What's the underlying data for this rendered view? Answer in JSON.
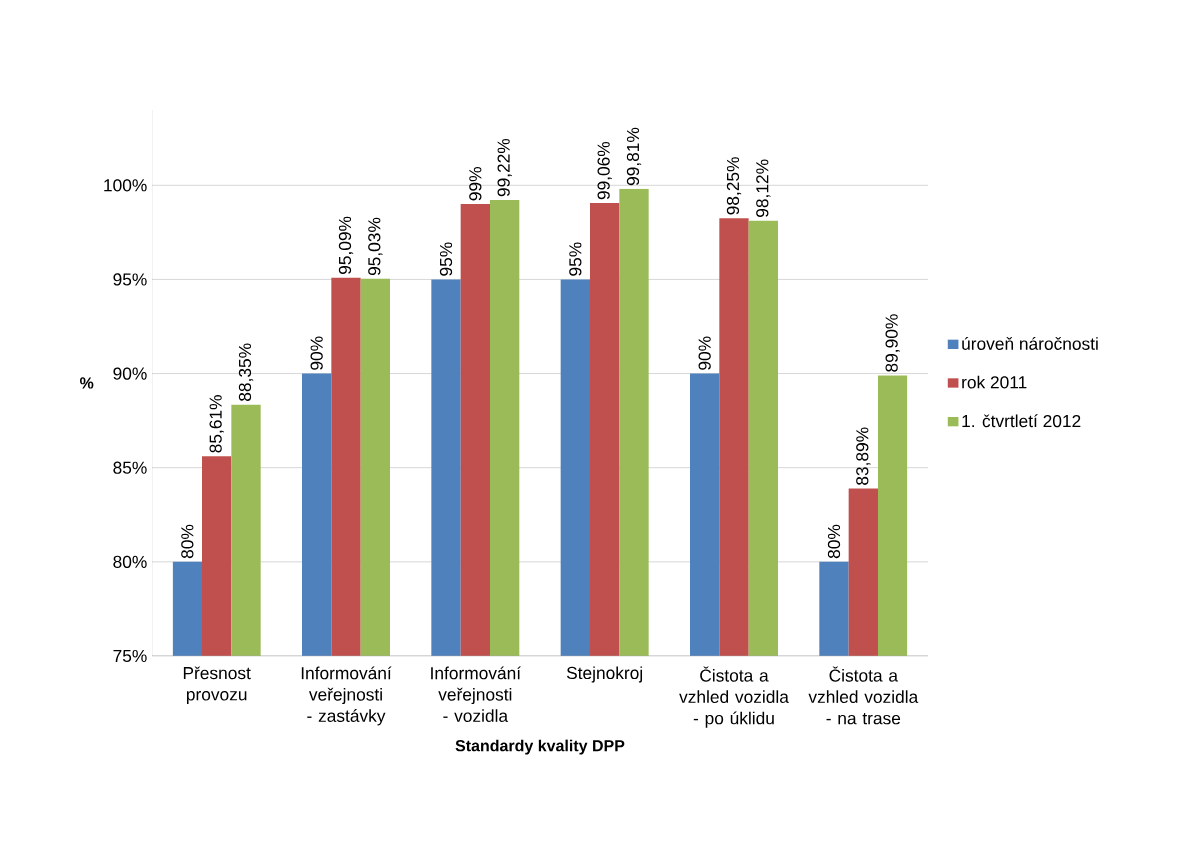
{
  "chart_data": {
    "type": "bar",
    "xlabel": "Standardy kvality DPP",
    "ylabel": "%",
    "categories": [
      "Přesnost provozu",
      "Informování veřejnosti - zastávky",
      "Informování veřejnosti - vozidla",
      "Stejnokroj",
      "Čistota a vzhled vozidla - po úklidu",
      "Čistota a vzhled vozidla - na trase"
    ],
    "series": [
      {
        "name": "úroveň náročnosti",
        "color": "#4f81bd",
        "values": [
          80,
          90,
          95,
          95,
          90,
          80
        ],
        "value_labels": [
          "80%",
          "90%",
          "95%",
          "95%",
          "90%",
          "80%"
        ]
      },
      {
        "name": "rok 2011",
        "color": "#c0504d",
        "values": [
          85.61,
          95.09,
          99,
          99.06,
          98.25,
          83.89
        ],
        "value_labels": [
          "85,61%",
          "95,09%",
          "99%",
          "99,06%",
          "98,25%",
          "83,89%"
        ]
      },
      {
        "name": "1. čtvrtletí 2012",
        "color": "#9bbb59",
        "values": [
          88.35,
          95.03,
          99.22,
          99.81,
          98.12,
          89.9
        ],
        "value_labels": [
          "88,35%",
          "95,03%",
          "99,22%",
          "99,81%",
          "98,12%",
          "89,90%"
        ]
      }
    ],
    "ylim": [
      75,
      104
    ],
    "yticks": [
      {
        "value": 75,
        "label": "75%"
      },
      {
        "value": 80,
        "label": "80%"
      },
      {
        "value": 85,
        "label": "85%"
      },
      {
        "value": 90,
        "label": "90%"
      },
      {
        "value": 95,
        "label": "95%"
      },
      {
        "value": 100,
        "label": "100%"
      }
    ],
    "grid": "y",
    "legend": "right"
  }
}
